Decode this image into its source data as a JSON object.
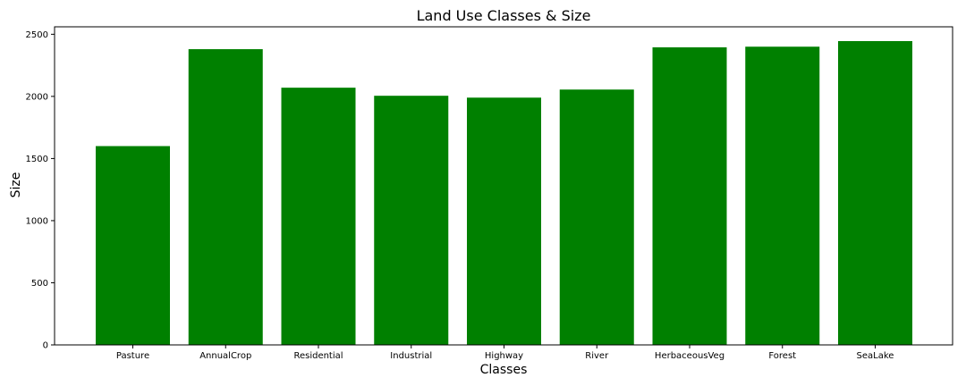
{
  "chart_data": {
    "type": "bar",
    "title": "Land Use Classes & Size",
    "xlabel": "Classes",
    "ylabel": "Size",
    "categories": [
      "Pasture",
      "AnnualCrop",
      "Residential",
      "Industrial",
      "Highway",
      "River",
      "HerbaceousVeg",
      "Forest",
      "SeaLake"
    ],
    "values": [
      1600,
      2380,
      2070,
      2005,
      1990,
      2055,
      2395,
      2400,
      2445
    ],
    "ylim": [
      0,
      2560
    ],
    "yticks": [
      0,
      500,
      1000,
      1500,
      2000,
      2500
    ],
    "bar_color": "#008000",
    "grid": false
  }
}
